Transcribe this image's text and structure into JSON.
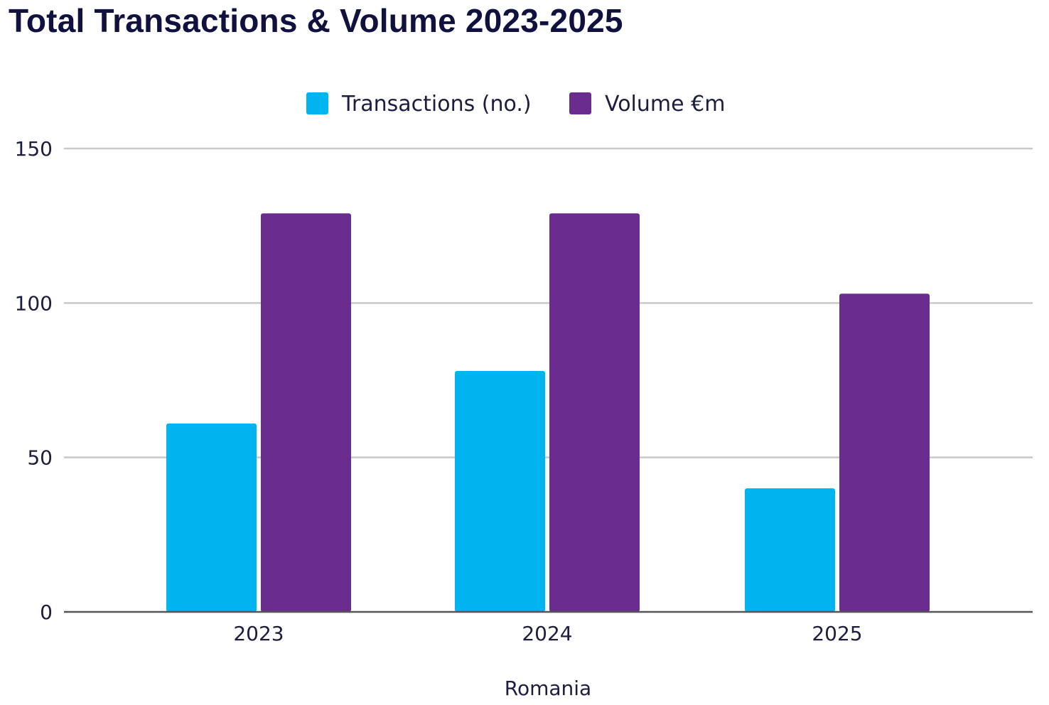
{
  "chart_data": {
    "type": "bar",
    "title": "Total Transactions & Volume 2023-2025",
    "categories": [
      "2023",
      "2024",
      "2025"
    ],
    "series": [
      {
        "name": "Transactions (no.)",
        "values": [
          61,
          78,
          40
        ],
        "color": "#00b5ef"
      },
      {
        "name": "Volume €m",
        "values": [
          129,
          129,
          103
        ],
        "color": "#6b2c8f"
      }
    ],
    "xlabel": "Romania",
    "ylabel": "",
    "ylim": [
      0,
      150
    ],
    "yticks": [
      0,
      50,
      100,
      150
    ],
    "ytick_labels": [
      "0",
      "50",
      "100",
      "150"
    ],
    "grid": true,
    "legend": "top-center"
  }
}
